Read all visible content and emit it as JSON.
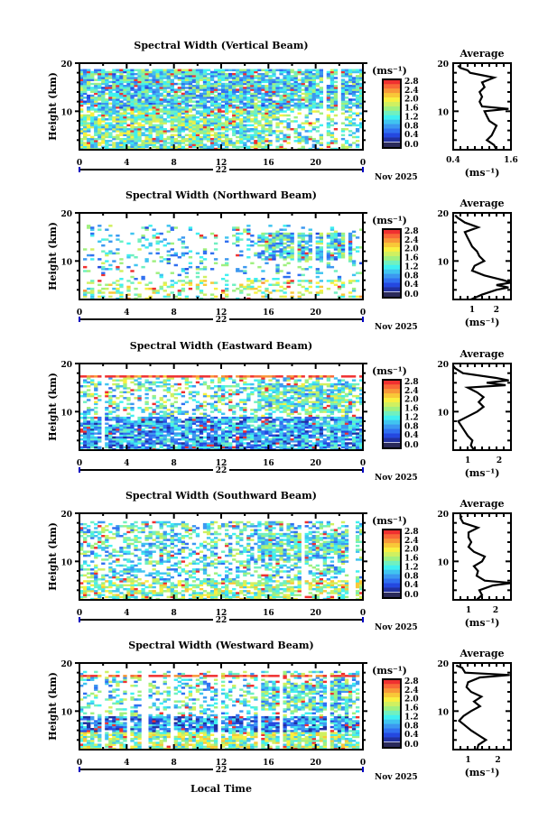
{
  "chart_data": {
    "type": "heatmap",
    "xlabel": "Local Time",
    "ylabel": "Height (km)",
    "x_ticks": [
      "0",
      "4",
      "8",
      "12",
      "16",
      "20",
      "0"
    ],
    "xlim": [
      0,
      24
    ],
    "ylim": [
      2,
      20
    ],
    "y_ticks": [
      "10",
      "20"
    ],
    "day_label": "22",
    "date_label": "Nov 2025",
    "colorbar": {
      "unit": "(ms⁻¹)",
      "ticks": [
        "0.0",
        "0.4",
        "0.8",
        "1.2",
        "1.6",
        "2.0",
        "2.4",
        "2.8"
      ],
      "zlim": [
        0,
        2.8
      ],
      "colors": [
        "#2a2a5a",
        "#2030a0",
        "#2448e0",
        "#3070f0",
        "#3c98f0",
        "#40c4f0",
        "#40f0f0",
        "#70f0c0",
        "#a0f080",
        "#d0f060",
        "#f8f040",
        "#f8c838",
        "#f89838",
        "#f86838",
        "#f03030"
      ]
    },
    "average_title": "Average",
    "average_unit": "(ms⁻¹)",
    "panels": [
      {
        "title": "Spectral Width (Vertical Beam)",
        "avg_xlim": [
          0.4,
          1.6
        ],
        "avg_ticks": [
          "0.4",
          "1.6"
        ],
        "avg_tick_values": [
          0.4,
          1.6
        ],
        "avg_profile": {
          "height": [
            2,
            3,
            4,
            5,
            6,
            7,
            8,
            9,
            10,
            10.5,
            11,
            12,
            13,
            14,
            15,
            16,
            17,
            18,
            18.5,
            19,
            19.5
          ],
          "value": [
            1.3,
            1.25,
            1.1,
            1.2,
            1.25,
            1.3,
            1.15,
            1.1,
            1.05,
            1.55,
            1.0,
            0.95,
            1.0,
            0.95,
            1.05,
            1.0,
            1.25,
            0.75,
            0.7,
            0.55,
            0.5
          ]
        }
      },
      {
        "title": "Spectral Width (Northward Beam)",
        "avg_xlim": [
          0.22,
          2.6
        ],
        "avg_ticks": [
          "1",
          "2"
        ],
        "avg_tick_values": [
          1,
          2
        ],
        "avg_profile": {
          "height": [
            2,
            3,
            4,
            4.5,
            5,
            5.5,
            6,
            7,
            8,
            9,
            10,
            11,
            12,
            13,
            14,
            15,
            16,
            17,
            18,
            19,
            19.5
          ],
          "value": [
            0.95,
            1.4,
            2.0,
            2.5,
            2.0,
            2.6,
            2.3,
            1.5,
            1.0,
            1.1,
            1.5,
            1.3,
            1.2,
            1.0,
            0.9,
            0.8,
            0.7,
            1.25,
            0.7,
            0.4,
            0.3
          ]
        }
      },
      {
        "title": "Spectral Width (Eastward Beam)",
        "avg_xlim": [
          0.54,
          2.37
        ],
        "avg_ticks": [
          "1",
          "2"
        ],
        "avg_tick_values": [
          1,
          2
        ],
        "avg_profile": {
          "height": [
            2,
            3,
            4,
            5,
            6,
            7,
            8,
            9,
            10,
            11,
            12,
            13,
            14,
            15,
            15.5,
            16,
            16.5,
            17,
            18,
            19,
            19.5
          ],
          "value": [
            1.2,
            1.1,
            1.15,
            1.0,
            0.9,
            0.8,
            0.7,
            1.0,
            1.3,
            1.5,
            1.35,
            1.5,
            1.3,
            1.0,
            2.2,
            1.6,
            2.3,
            1.9,
            0.85,
            0.6,
            0.55
          ]
        }
      },
      {
        "title": "Spectral Width (Southward Beam)",
        "avg_xlim": [
          0.43,
          2.57
        ],
        "avg_ticks": [
          "1",
          "2"
        ],
        "avg_tick_values": [
          1,
          2
        ],
        "avg_profile": {
          "height": [
            2,
            3,
            4,
            5,
            5.5,
            6,
            7,
            8,
            9,
            10,
            11,
            12,
            13,
            14,
            15,
            16,
            17,
            18,
            19,
            19.5
          ],
          "value": [
            1.3,
            1.5,
            1.4,
            1.9,
            2.6,
            1.6,
            1.3,
            1.35,
            1.2,
            1.5,
            1.6,
            1.2,
            1.0,
            1.1,
            1.0,
            1.0,
            1.35,
            0.8,
            0.7,
            0.75
          ]
        }
      },
      {
        "title": "Spectral Width (Westward Beam)",
        "avg_xlim": [
          0.5,
          2.44
        ],
        "avg_ticks": [
          "1",
          "2"
        ],
        "avg_tick_values": [
          1,
          2
        ],
        "avg_profile": {
          "height": [
            2,
            3,
            4,
            5,
            6,
            7,
            8,
            9,
            10,
            11,
            12,
            13,
            14,
            15,
            16,
            17,
            17.5,
            18,
            19,
            19.5
          ],
          "value": [
            1.3,
            1.35,
            1.6,
            1.35,
            1.1,
            0.9,
            0.7,
            0.85,
            1.1,
            1.4,
            1.2,
            1.45,
            1.1,
            0.95,
            1.0,
            1.4,
            2.4,
            0.9,
            0.8,
            0.6
          ]
        }
      }
    ]
  }
}
